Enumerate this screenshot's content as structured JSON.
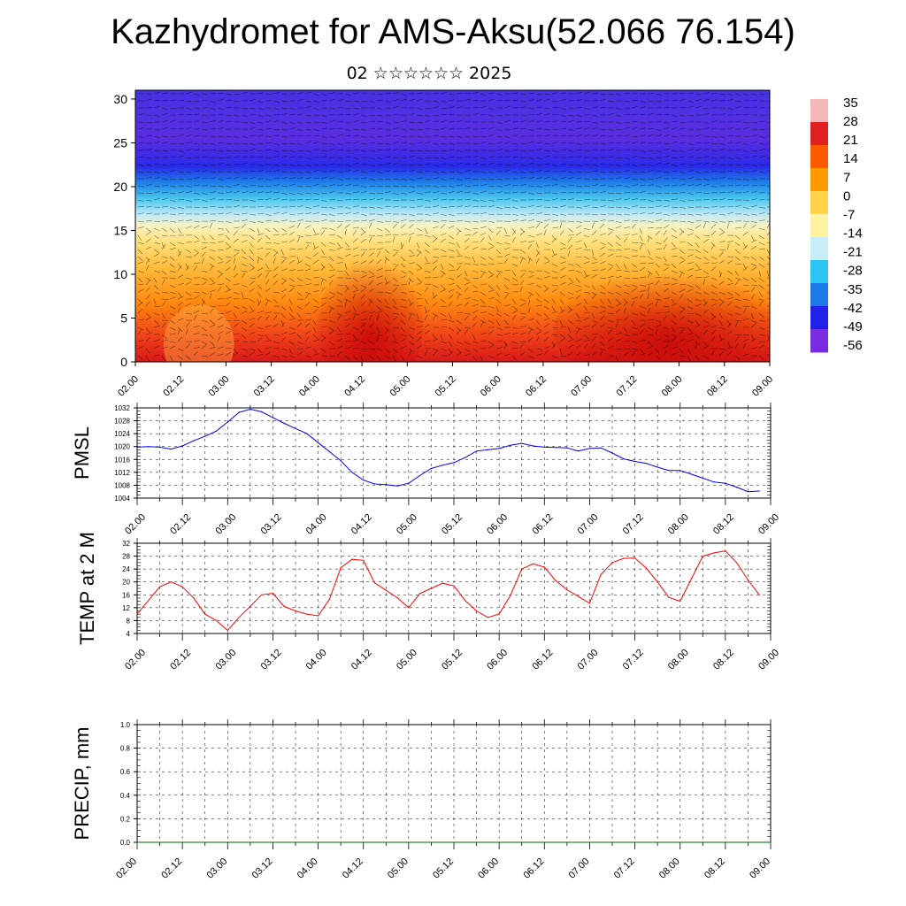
{
  "title": "Kazhydromet for AMS-Aksu(52.066 76.154)",
  "subtitle": "02 ☆☆☆☆☆☆ 2025",
  "chart_data": [
    {
      "type": "heatmap",
      "yticks": [
        "0",
        "5",
        "10",
        "15",
        "20",
        "25",
        "30"
      ],
      "ylim": [
        0,
        31
      ],
      "xticks": [
        "02.00",
        "02.12",
        "03.00",
        "03.12",
        "04.00",
        "04.12",
        "05.00",
        "05.12",
        "06.00",
        "06.12",
        "07.00",
        "07.12",
        "08.00",
        "08.12",
        "09.00"
      ],
      "colorbar_labels": [
        "35",
        "28",
        "21",
        "14",
        "7",
        "0",
        "-7",
        "-14",
        "-21",
        "-28",
        "-35",
        "-42",
        "-49",
        "-56"
      ],
      "colorbar_colors": [
        "#f4b8b8",
        "#e02020",
        "#ff5a00",
        "#ff9a00",
        "#ffd24a",
        "#fff2a0",
        "#c8ecf8",
        "#2cc4f0",
        "#1a78e8",
        "#2020e8",
        "#7a2ae0"
      ],
      "note_overlay": "wind barbs"
    },
    {
      "type": "line",
      "ylabel": "PMSL",
      "yticks": [
        "1004",
        "1008",
        "1012",
        "1016",
        "1020",
        "1024",
        "1028",
        "1032"
      ],
      "ylim": [
        1004,
        1032
      ],
      "xticks": [
        "02.00",
        "02.12",
        "03.00",
        "03.12",
        "04.00",
        "04.12",
        "05.00",
        "05.12",
        "06.00",
        "06.12",
        "07.00",
        "07.12",
        "08.00",
        "08.12",
        "09.00"
      ],
      "series": [
        {
          "color": "#0000ff",
          "x": [
            0,
            3,
            6,
            9,
            12,
            15,
            18,
            21,
            24,
            27,
            30,
            33,
            36,
            39,
            42,
            45,
            48,
            51,
            54,
            57,
            60,
            63,
            66,
            69,
            72,
            75,
            78,
            81,
            84,
            87,
            90,
            93,
            96,
            99,
            102,
            105,
            108,
            111,
            114,
            117,
            120,
            123,
            126,
            129,
            132,
            135,
            138,
            141,
            144,
            147,
            150,
            153,
            156,
            159,
            162,
            165
          ],
          "values": [
            1019.8,
            1020,
            1019.8,
            1019.2,
            1020.2,
            1021.8,
            1023.2,
            1024.8,
            1027.6,
            1030.6,
            1031.6,
            1030.8,
            1029,
            1027.2,
            1025.6,
            1024,
            1021.2,
            1018.4,
            1015.6,
            1012,
            1009.6,
            1008.4,
            1008.2,
            1007.8,
            1008.6,
            1011,
            1013.2,
            1014.2,
            1015,
            1016.6,
            1018.6,
            1019,
            1019.4,
            1020.4,
            1021,
            1020.2,
            1019.8,
            1019.7,
            1019.6,
            1018.6,
            1019.4,
            1019.6,
            1018,
            1016.2,
            1015.4,
            1014.8,
            1013.6,
            1012.6,
            1012.6,
            1011.4,
            1010.2,
            1009,
            1008.6,
            1007.4,
            1006,
            1006.2
          ]
        }
      ]
    },
    {
      "type": "line",
      "ylabel": "TEMP at 2 M",
      "yticks": [
        "4",
        "8",
        "12",
        "16",
        "20",
        "24",
        "28",
        "32"
      ],
      "ylim": [
        4,
        32
      ],
      "xticks": [
        "02.00",
        "02.12",
        "03.00",
        "03.12",
        "04.00",
        "04.12",
        "05.00",
        "05.12",
        "06.00",
        "06.12",
        "07.00",
        "07.12",
        "08.00",
        "08.12",
        "09.00"
      ],
      "series": [
        {
          "color": "#ff0000",
          "x": [
            0,
            6,
            9,
            12,
            15,
            18,
            21,
            24,
            27,
            30,
            33,
            36,
            39,
            42,
            45,
            48,
            51,
            54,
            57,
            60,
            63,
            66,
            69,
            72,
            75,
            78,
            81,
            84,
            87,
            90,
            93,
            96,
            99,
            102,
            105,
            108,
            111,
            114,
            117,
            120,
            123,
            126,
            129,
            132,
            135,
            138,
            141,
            144,
            147,
            150,
            153,
            156,
            159,
            162,
            165
          ],
          "values": [
            10,
            18.5,
            20,
            18.5,
            15,
            10,
            8,
            5,
            9,
            12.4,
            16,
            16.5,
            12.4,
            11,
            10,
            9.5,
            14.6,
            24.4,
            27,
            26.7,
            19.7,
            17.4,
            15.1,
            12,
            16.4,
            18,
            19.6,
            18.8,
            14.2,
            11,
            9,
            10,
            15.8,
            24,
            25.6,
            24.6,
            20.4,
            17.6,
            15.5,
            13.4,
            22.3,
            26,
            27.3,
            27.4,
            24.3,
            20,
            15.2,
            14,
            21,
            28,
            29,
            29.6,
            26,
            20.6,
            16
          ]
        }
      ]
    },
    {
      "type": "line",
      "ylabel": "PRECIP, mm",
      "yticks": [
        "0.0",
        "0.2",
        "0.4",
        "0.6",
        "0.8",
        "1.0"
      ],
      "ylim": [
        0,
        1
      ],
      "xticks": [
        "02.00",
        "02.12",
        "03.00",
        "03.12",
        "04.00",
        "04.12",
        "05.00",
        "05.12",
        "06.00",
        "06.12",
        "07.00",
        "07.12",
        "08.00",
        "08.12",
        "09.00"
      ],
      "series": [
        {
          "color": "#006400",
          "x": [
            0,
            168
          ],
          "values": [
            0,
            0
          ]
        }
      ]
    }
  ]
}
